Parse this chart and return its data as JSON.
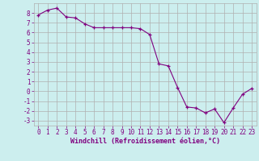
{
  "x": [
    0,
    1,
    2,
    3,
    4,
    5,
    6,
    7,
    8,
    9,
    10,
    11,
    12,
    13,
    14,
    15,
    16,
    17,
    18,
    19,
    20,
    21,
    22,
    23
  ],
  "y": [
    7.8,
    8.3,
    8.5,
    7.6,
    7.5,
    6.9,
    6.5,
    6.5,
    6.5,
    6.5,
    6.5,
    6.4,
    5.8,
    2.8,
    2.6,
    0.4,
    -1.6,
    -1.7,
    -2.2,
    -1.8,
    -3.2,
    -1.7,
    -0.3,
    0.3
  ],
  "line_color": "#800080",
  "marker": "+",
  "marker_color": "#800080",
  "bg_color": "#cceeee",
  "grid_color": "#b0b0b0",
  "xlabel": "Windchill (Refroidissement éolien,°C)",
  "xlabel_color": "#800080",
  "tick_color": "#800080",
  "ylim": [
    -3.5,
    9.0
  ],
  "xlim": [
    -0.5,
    23.5
  ],
  "yticks": [
    -3,
    -2,
    -1,
    0,
    1,
    2,
    3,
    4,
    5,
    6,
    7,
    8
  ],
  "xticks": [
    0,
    1,
    2,
    3,
    4,
    5,
    6,
    7,
    8,
    9,
    10,
    11,
    12,
    13,
    14,
    15,
    16,
    17,
    18,
    19,
    20,
    21,
    22,
    23
  ],
  "tick_fontsize": 5.5,
  "xlabel_fontsize": 6.0,
  "linewidth": 0.8,
  "markersize": 3.5
}
